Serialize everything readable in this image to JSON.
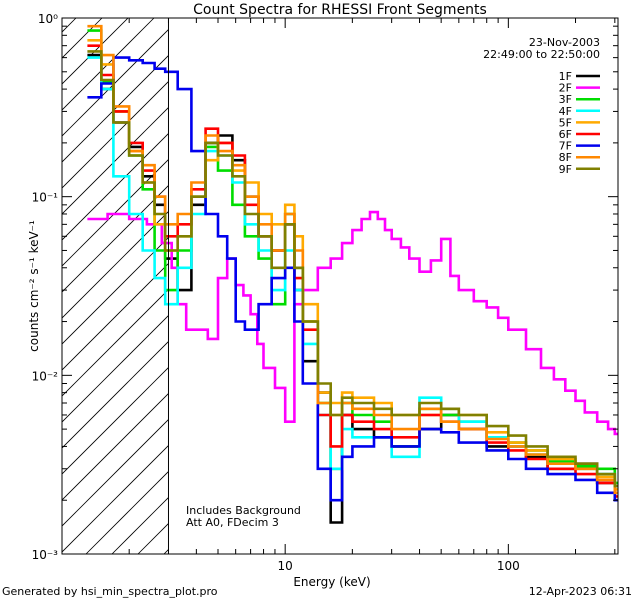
{
  "footer": {
    "generated": "Generated by hsi_min_spectra_plot.pro",
    "timestamp": "12-Apr-2023 06:31"
  },
  "chart_data": {
    "type": "line",
    "title": "Count Spectra for RHESSI Front Segments",
    "xlabel": "Energy (keV)",
    "ylabel": "counts cm⁻² s⁻¹ keV⁻¹",
    "xscale": "log",
    "yscale": "log",
    "xlim": [
      1.0,
      310
    ],
    "ylim": [
      0.001,
      1.0
    ],
    "xticks": [
      {
        "value": 10,
        "label": "10"
      },
      {
        "value": 100,
        "label": "100"
      }
    ],
    "yticks": [
      {
        "value": 1,
        "label": "10⁰"
      },
      {
        "value": 0.1,
        "label": "10⁻¹"
      },
      {
        "value": 0.01,
        "label": "10⁻²"
      },
      {
        "value": 0.001,
        "label": "10⁻³"
      }
    ],
    "date": "23-Nov-2003",
    "time_range": "22:49:00 to 22:50:00",
    "annotations": [
      "Includes Background",
      "Att A0, FDecim 3"
    ],
    "excluded_region": {
      "x_from": 1.0,
      "x_to": 3.0,
      "style": "hatched"
    },
    "legend_position": "top-right",
    "series": [
      {
        "name": "1F",
        "color": "#000000",
        "x": [
          1.3,
          1.5,
          1.7,
          2.0,
          2.3,
          2.6,
          2.9,
          3.3,
          3.8,
          4.4,
          5.0,
          5.8,
          6.6,
          7.6,
          8.7,
          10,
          11,
          12,
          14,
          16,
          18,
          20,
          25,
          30,
          40,
          50,
          60,
          80,
          100,
          120,
          150,
          200,
          250,
          300
        ],
        "y": [
          0.62,
          0.4,
          0.26,
          0.19,
          0.13,
          0.09,
          0.045,
          0.03,
          0.09,
          0.2,
          0.22,
          0.16,
          0.1,
          0.06,
          0.05,
          0.07,
          0.03,
          0.012,
          0.008,
          0.0015,
          0.006,
          0.005,
          0.0045,
          0.004,
          0.005,
          0.006,
          0.005,
          0.004,
          0.004,
          0.0035,
          0.003,
          0.0032,
          0.0025,
          0.0022
        ]
      },
      {
        "name": "2F",
        "color": "#ff00ff",
        "x": [
          1.3,
          1.6,
          2.0,
          2.4,
          2.8,
          3.1,
          3.3,
          3.6,
          4.0,
          4.5,
          5.0,
          5.5,
          6.0,
          6.5,
          7.0,
          7.5,
          8.0,
          9.0,
          10,
          11,
          12,
          14,
          16,
          18,
          20,
          22,
          24,
          26,
          28,
          30,
          33,
          36,
          40,
          45,
          50,
          55,
          60,
          70,
          80,
          90,
          100,
          120,
          140,
          160,
          180,
          200,
          220,
          250,
          280,
          300
        ],
        "y": [
          0.075,
          0.08,
          0.075,
          0.07,
          0.055,
          0.04,
          0.025,
          0.018,
          0.018,
          0.016,
          0.035,
          0.045,
          0.032,
          0.028,
          0.022,
          0.015,
          0.011,
          0.0085,
          0.0055,
          0.025,
          0.03,
          0.04,
          0.045,
          0.055,
          0.065,
          0.075,
          0.082,
          0.075,
          0.065,
          0.058,
          0.052,
          0.045,
          0.038,
          0.044,
          0.058,
          0.036,
          0.03,
          0.026,
          0.024,
          0.021,
          0.018,
          0.014,
          0.011,
          0.0095,
          0.0082,
          0.0072,
          0.0062,
          0.0055,
          0.005,
          0.0047
        ]
      },
      {
        "name": "3F",
        "color": "#00dd00",
        "x": [
          1.3,
          1.5,
          1.7,
          2.0,
          2.3,
          2.6,
          2.9,
          3.3,
          3.8,
          4.4,
          5.0,
          5.8,
          6.6,
          7.6,
          8.7,
          10,
          11,
          12,
          14,
          16,
          18,
          20,
          25,
          30,
          40,
          50,
          60,
          80,
          100,
          120,
          150,
          200,
          250,
          300
        ],
        "y": [
          0.85,
          0.44,
          0.3,
          0.17,
          0.11,
          0.05,
          0.03,
          0.05,
          0.1,
          0.19,
          0.14,
          0.09,
          0.06,
          0.045,
          0.025,
          0.08,
          0.04,
          0.02,
          0.007,
          0.003,
          0.007,
          0.006,
          0.0055,
          0.004,
          0.0065,
          0.006,
          0.0055,
          0.0045,
          0.0042,
          0.0038,
          0.0033,
          0.0031,
          0.003,
          0.0025
        ]
      },
      {
        "name": "4F",
        "color": "#00ffff",
        "x": [
          1.3,
          1.5,
          1.7,
          2.0,
          2.3,
          2.6,
          2.9,
          3.3,
          3.8,
          4.4,
          5.0,
          5.8,
          6.6,
          7.6,
          8.7,
          10,
          11,
          12,
          14,
          16,
          18,
          20,
          25,
          30,
          40,
          50,
          60,
          80,
          100,
          120,
          150,
          200,
          250,
          300
        ],
        "y": [
          0.6,
          0.4,
          0.13,
          0.08,
          0.05,
          0.035,
          0.025,
          0.04,
          0.08,
          0.18,
          0.17,
          0.12,
          0.07,
          0.05,
          0.03,
          0.05,
          0.03,
          0.015,
          0.006,
          0.003,
          0.005,
          0.0045,
          0.0045,
          0.0035,
          0.0075,
          0.0065,
          0.0055,
          0.0045,
          0.004,
          0.0036,
          0.0032,
          0.003,
          0.0028,
          0.0024
        ]
      },
      {
        "name": "5F",
        "color": "#ffaa00",
        "x": [
          1.3,
          1.5,
          1.7,
          2.0,
          2.3,
          2.6,
          2.9,
          3.3,
          3.8,
          4.4,
          5.0,
          5.8,
          6.6,
          7.6,
          8.7,
          10,
          11,
          12,
          14,
          16,
          18,
          20,
          25,
          30,
          40,
          50,
          60,
          80,
          100,
          120,
          150,
          200,
          250,
          300
        ],
        "y": [
          0.75,
          0.55,
          0.3,
          0.18,
          0.12,
          0.07,
          0.05,
          0.06,
          0.1,
          0.16,
          0.2,
          0.14,
          0.12,
          0.08,
          0.07,
          0.09,
          0.06,
          0.025,
          0.008,
          0.007,
          0.008,
          0.0075,
          0.007,
          0.006,
          0.006,
          0.0065,
          0.006,
          0.0048,
          0.0042,
          0.0038,
          0.0034,
          0.003,
          0.0027,
          0.0023
        ]
      },
      {
        "name": "6F",
        "color": "#ff0000",
        "x": [
          1.3,
          1.5,
          1.7,
          2.0,
          2.3,
          2.6,
          2.9,
          3.3,
          3.8,
          4.4,
          5.0,
          5.8,
          6.6,
          7.6,
          8.7,
          10,
          11,
          12,
          14,
          16,
          18,
          20,
          25,
          30,
          40,
          50,
          60,
          80,
          100,
          120,
          150,
          200,
          250,
          300
        ],
        "y": [
          0.7,
          0.48,
          0.3,
          0.2,
          0.14,
          0.1,
          0.06,
          0.07,
          0.11,
          0.24,
          0.2,
          0.17,
          0.09,
          0.06,
          0.05,
          0.07,
          0.035,
          0.018,
          0.006,
          0.004,
          0.006,
          0.0055,
          0.005,
          0.0045,
          0.006,
          0.0055,
          0.005,
          0.0042,
          0.0038,
          0.0034,
          0.003,
          0.0028,
          0.0025,
          0.0021
        ]
      },
      {
        "name": "7F",
        "color": "#0000ee",
        "x": [
          1.3,
          1.5,
          1.7,
          2.0,
          2.3,
          2.6,
          2.9,
          3.3,
          3.8,
          4.4,
          5.0,
          5.5,
          6.0,
          6.6,
          7.6,
          8.7,
          10,
          11,
          12,
          14,
          16,
          18,
          20,
          25,
          30,
          40,
          50,
          60,
          80,
          100,
          120,
          150,
          200,
          250,
          300
        ],
        "y": [
          0.36,
          0.43,
          0.6,
          0.58,
          0.56,
          0.52,
          0.5,
          0.4,
          0.18,
          0.08,
          0.06,
          0.045,
          0.02,
          0.018,
          0.025,
          0.035,
          0.04,
          0.02,
          0.009,
          0.003,
          0.002,
          0.0035,
          0.004,
          0.0045,
          0.004,
          0.005,
          0.0048,
          0.0042,
          0.0038,
          0.0034,
          0.003,
          0.0028,
          0.0026,
          0.0022,
          0.002
        ]
      },
      {
        "name": "8F",
        "color": "#ff8800",
        "x": [
          1.3,
          1.5,
          1.7,
          2.0,
          2.3,
          2.6,
          2.9,
          3.3,
          3.8,
          4.4,
          5.0,
          5.8,
          6.6,
          7.6,
          8.7,
          10,
          11,
          12,
          14,
          16,
          18,
          20,
          25,
          30,
          40,
          50,
          60,
          80,
          100,
          120,
          150,
          200,
          250,
          300
        ],
        "y": [
          0.9,
          0.62,
          0.32,
          0.18,
          0.15,
          0.1,
          0.07,
          0.08,
          0.12,
          0.22,
          0.18,
          0.15,
          0.1,
          0.07,
          0.05,
          0.08,
          0.05,
          0.02,
          0.007,
          0.006,
          0.007,
          0.0065,
          0.006,
          0.005,
          0.0065,
          0.0055,
          0.005,
          0.0044,
          0.004,
          0.0036,
          0.0032,
          0.003,
          0.0026,
          0.0022
        ]
      },
      {
        "name": "9F",
        "color": "#808000",
        "x": [
          1.3,
          1.5,
          1.7,
          2.0,
          2.3,
          2.6,
          2.9,
          3.3,
          3.8,
          4.4,
          5.0,
          5.8,
          6.6,
          7.6,
          8.7,
          10,
          11,
          12,
          14,
          16,
          18,
          20,
          25,
          30,
          40,
          50,
          60,
          80,
          100,
          120,
          150,
          200,
          250,
          300
        ],
        "y": [
          0.65,
          0.45,
          0.26,
          0.17,
          0.12,
          0.08,
          0.05,
          0.06,
          0.1,
          0.2,
          0.17,
          0.13,
          0.08,
          0.06,
          0.04,
          0.07,
          0.04,
          0.02,
          0.009,
          0.006,
          0.0075,
          0.007,
          0.0065,
          0.006,
          0.007,
          0.0065,
          0.006,
          0.0052,
          0.0046,
          0.004,
          0.0035,
          0.0032,
          0.0028,
          0.0024
        ]
      }
    ]
  }
}
